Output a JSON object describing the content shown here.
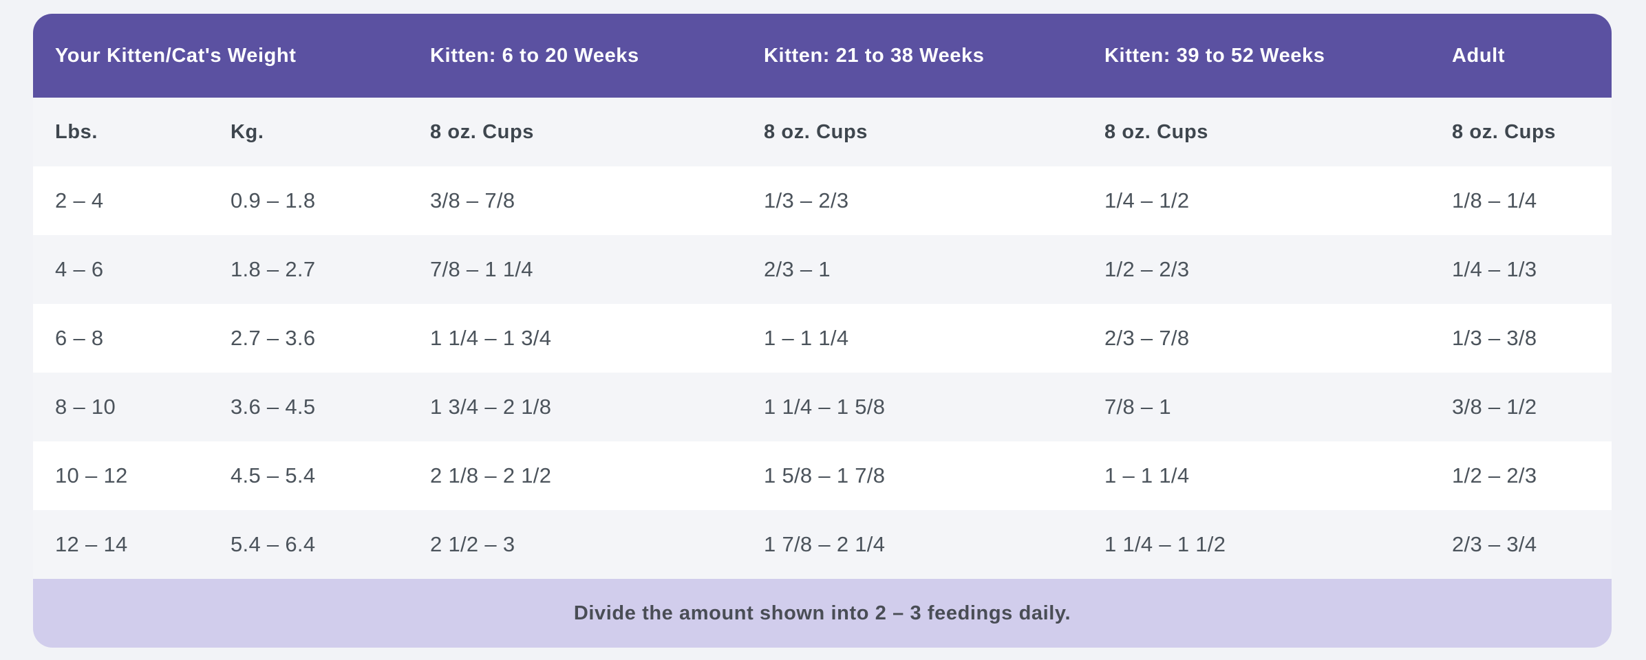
{
  "colors": {
    "page_bg": "#f2f3f7",
    "header_bg": "#5b51a1",
    "header_text": "#ffffff",
    "subheader_bg": "#f4f5f8",
    "row_bg": "#ffffff",
    "row_alt_bg": "#f4f5f8",
    "body_text": "#4b535b",
    "footer_bg": "#d1cdec",
    "footer_text": "#494d55"
  },
  "table": {
    "header": {
      "weight_label": "Your Kitten/Cat's Weight",
      "columns": [
        "Kitten: 6 to 20 Weeks",
        "Kitten: 21 to 38 Weeks",
        "Kitten: 39 to 52 Weeks",
        "Adult"
      ]
    },
    "subheader": [
      "Lbs.",
      "Kg.",
      "8 oz. Cups",
      "8 oz. Cups",
      "8 oz. Cups",
      "8 oz. Cups"
    ],
    "rows": [
      [
        "2 – 4",
        "0.9 – 1.8",
        "3/8 – 7/8",
        "1/3 – 2/3",
        "1/4 – 1/2",
        "1/8 – 1/4"
      ],
      [
        "4 – 6",
        "1.8 – 2.7",
        "7/8 – 1 1/4",
        "2/3 – 1",
        "1/2 – 2/3",
        "1/4 – 1/3"
      ],
      [
        "6 – 8",
        "2.7 – 3.6",
        "1 1/4 – 1 3/4",
        "1 – 1 1/4",
        "2/3 – 7/8",
        "1/3 – 3/8"
      ],
      [
        "8 – 10",
        "3.6 – 4.5",
        "1 3/4 – 2 1/8",
        "1 1/4 – 1 5/8",
        "7/8 – 1",
        "3/8 – 1/2"
      ],
      [
        "10 – 12",
        "4.5 – 5.4",
        "2 1/8 – 2 1/2",
        "1 5/8 – 1 7/8",
        "1 – 1 1/4",
        "1/2 – 2/3"
      ],
      [
        "12 – 14",
        "5.4 – 6.4",
        "2 1/2 – 3",
        "1 7/8 – 2 1/4",
        "1 1/4 – 1 1/2",
        "2/3 – 3/4"
      ]
    ],
    "footer_note": "Divide the amount shown into 2 – 3 feedings daily."
  },
  "chart_data": {
    "type": "table",
    "column_groups": [
      "Your Kitten/Cat's Weight",
      "Kitten: 6 to 20 Weeks",
      "Kitten: 21 to 38 Weeks",
      "Kitten: 39 to 52 Weeks",
      "Adult"
    ],
    "columns": [
      "Lbs.",
      "Kg.",
      "8 oz. Cups",
      "8 oz. Cups",
      "8 oz. Cups",
      "8 oz. Cups"
    ],
    "rows": [
      [
        "2 – 4",
        "0.9 – 1.8",
        "3/8 – 7/8",
        "1/3 – 2/3",
        "1/4 – 1/2",
        "1/8 – 1/4"
      ],
      [
        "4 – 6",
        "1.8 – 2.7",
        "7/8 – 1 1/4",
        "2/3 – 1",
        "1/2 – 2/3",
        "1/4 – 1/3"
      ],
      [
        "6 – 8",
        "2.7 – 3.6",
        "1 1/4 – 1 3/4",
        "1 – 1 1/4",
        "2/3 – 7/8",
        "1/3 – 3/8"
      ],
      [
        "8 – 10",
        "3.6 – 4.5",
        "1 3/4 – 2 1/8",
        "1 1/4 – 1 5/8",
        "7/8 – 1",
        "3/8 – 1/2"
      ],
      [
        "10 – 12",
        "4.5 – 5.4",
        "2 1/8 – 2 1/2",
        "1 5/8 – 1 7/8",
        "1 – 1 1/4",
        "1/2 – 2/3"
      ],
      [
        "12 – 14",
        "5.4 – 6.4",
        "2 1/2 – 3",
        "1 7/8 – 2 1/4",
        "1 1/4 – 1 1/2",
        "2/3 – 3/4"
      ]
    ],
    "note": "Divide the amount shown into 2 – 3 feedings daily."
  }
}
